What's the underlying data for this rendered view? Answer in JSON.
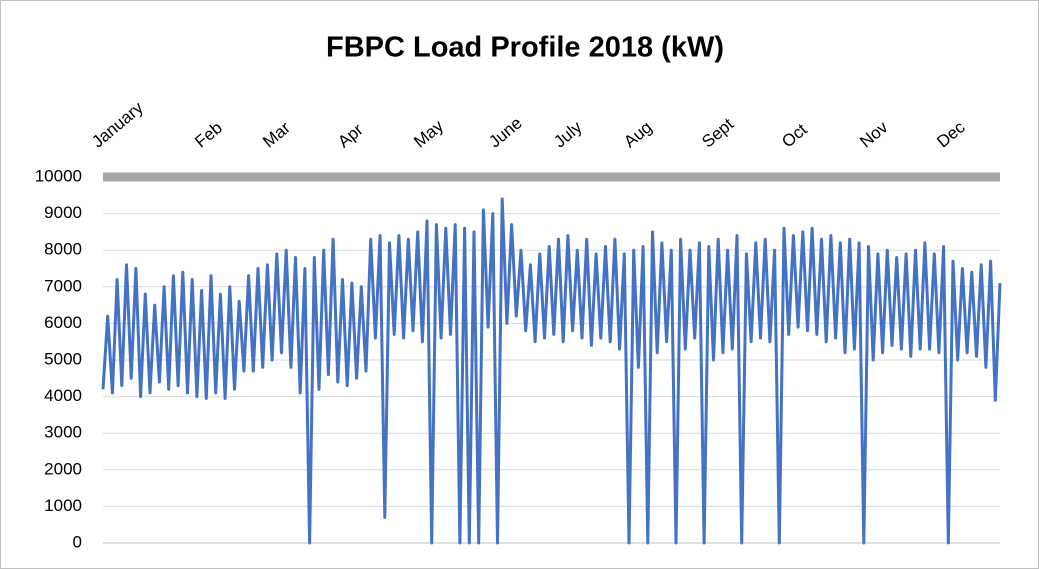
{
  "chart_data": {
    "type": "line",
    "title": "FBPC Load Profile 2018    (kW)",
    "x_labels": [
      "January",
      "Feb",
      "Mar",
      "Apr",
      "May",
      "June",
      "July",
      "Aug",
      "Sept",
      "Oct",
      "Nov",
      "Dec"
    ],
    "ylim": [
      0,
      10000
    ],
    "yticks": [
      0,
      1000,
      2000,
      3000,
      4000,
      5000,
      6000,
      7000,
      8000,
      9000,
      10000
    ],
    "grid": true,
    "series": [
      {
        "color": "#4472c4",
        "values": [
          4200,
          6200,
          4100,
          7200,
          4300,
          7600,
          4500,
          7500,
          4000,
          6800,
          4100,
          6500,
          4400,
          7000,
          4200,
          7300,
          4300,
          7400,
          4100,
          7200,
          4000,
          6900,
          3950,
          7300,
          4100,
          6800,
          3950,
          7000,
          4200,
          6600,
          4700,
          7300,
          4700,
          7500,
          4800,
          7600,
          5000,
          7900,
          5200,
          8000,
          4800,
          7800,
          4100,
          7500,
          0,
          7800,
          4200,
          8000,
          4600,
          8300,
          4400,
          7200,
          4300,
          7100,
          4500,
          7000,
          4700,
          8300,
          5600,
          8400,
          700,
          8200,
          5700,
          8400,
          5600,
          8300,
          5800,
          8500,
          5500,
          8800,
          0,
          8700,
          5600,
          8600,
          5700,
          8700,
          0,
          8600,
          0,
          8500,
          0,
          9100,
          5900,
          9000,
          0,
          9400,
          6000,
          8700,
          6200,
          8000,
          5800,
          7600,
          5500,
          7900,
          5600,
          8100,
          5700,
          8300,
          5500,
          8400,
          5800,
          8000,
          5600,
          8300,
          5400,
          7900,
          5600,
          8100,
          5500,
          8300,
          5300,
          7900,
          0,
          8000,
          4800,
          8100,
          0,
          8500,
          5200,
          8200,
          5500,
          8000,
          0,
          8300,
          5300,
          8000,
          5600,
          8200,
          0,
          8100,
          5000,
          8300,
          5200,
          8000,
          5300,
          8400,
          0,
          7900,
          5500,
          8200,
          5600,
          8300,
          5500,
          8000,
          0,
          8600,
          5700,
          8400,
          5900,
          8500,
          5800,
          8600,
          5700,
          8300,
          5500,
          8400,
          5600,
          8200,
          5200,
          8300,
          5300,
          8200,
          0,
          8100,
          5000,
          7900,
          5200,
          8000,
          5400,
          7800,
          5300,
          7900,
          5100,
          8000,
          5300,
          8200,
          5300,
          7900,
          5200,
          8100,
          0,
          7700,
          5000,
          7500,
          5200,
          7400,
          5100,
          7600,
          4800,
          7700,
          3900,
          7100
        ]
      }
    ]
  }
}
